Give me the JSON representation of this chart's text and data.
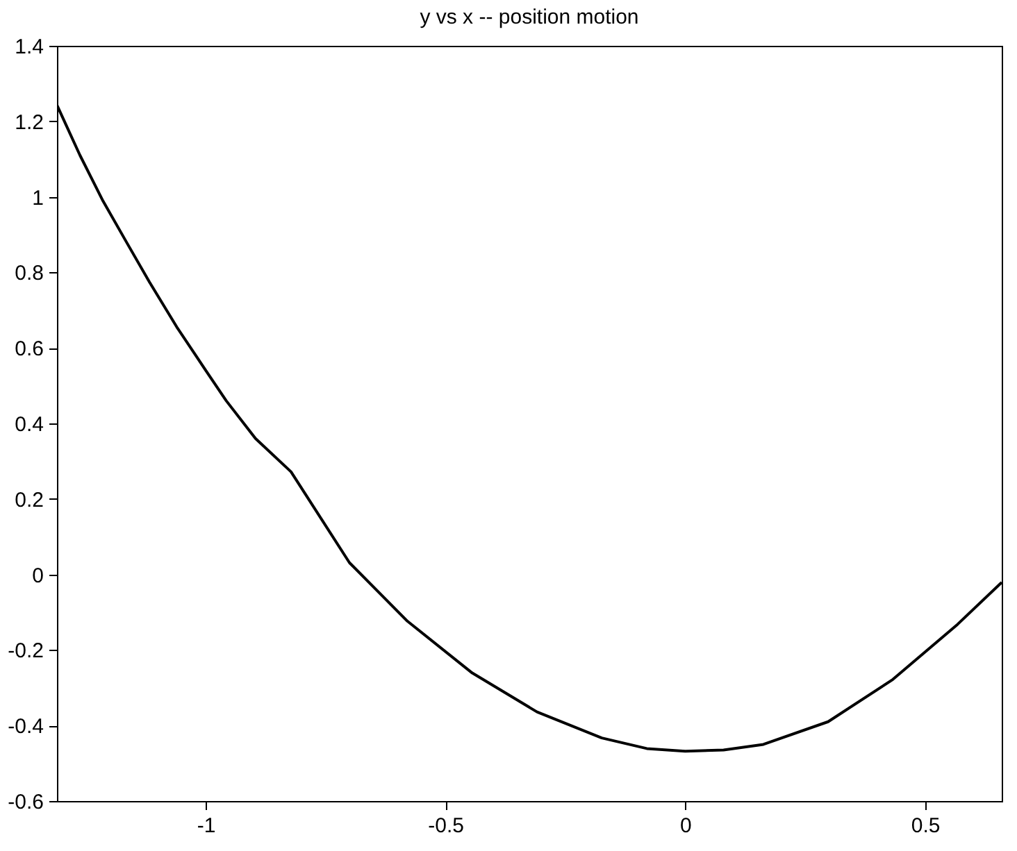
{
  "chart_data": {
    "type": "line",
    "title": "y vs x -- position motion",
    "x": [
      -1.31,
      -1.262,
      -1.214,
      -1.165,
      -1.117,
      -1.06,
      -1.0,
      -0.957,
      -0.896,
      -0.822,
      -0.7,
      -0.579,
      -0.444,
      -0.309,
      -0.174,
      -0.08,
      0.0,
      0.08,
      0.163,
      0.298,
      0.433,
      0.568,
      0.66
    ],
    "series": [
      {
        "color": "#000000",
        "values": [
          1.243,
          1.11,
          0.989,
          0.88,
          0.774,
          0.655,
          0.541,
          0.46,
          0.36,
          0.272,
          0.031,
          -0.124,
          -0.261,
          -0.364,
          -0.433,
          -0.461,
          -0.468,
          -0.465,
          -0.45,
          -0.39,
          -0.278,
          -0.132,
          -0.021
        ]
      }
    ],
    "xlim": [
      -1.31,
      0.66
    ],
    "xticks": [
      -1,
      -0.5,
      0,
      0.5
    ],
    "ylim": [
      -0.6,
      1.4
    ],
    "yticks": [
      -0.6,
      -0.4,
      -0.2,
      0,
      0.2,
      0.4,
      0.6,
      0.8,
      1,
      1.2,
      1.4
    ],
    "grid": false,
    "marker": "none",
    "line_style": "solid"
  }
}
